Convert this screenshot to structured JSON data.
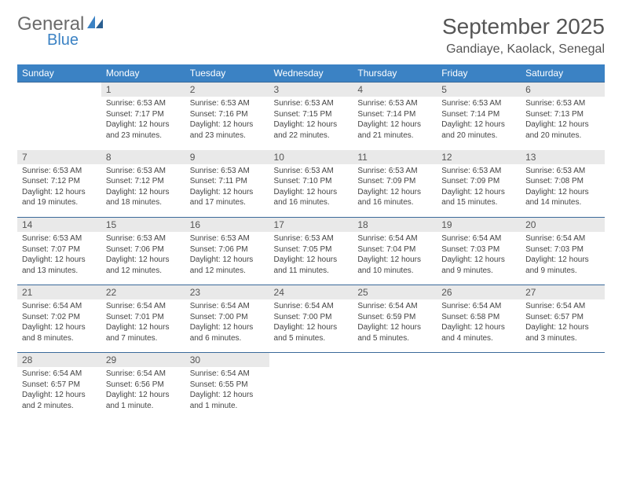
{
  "logo": {
    "line1": "General",
    "line2": "Blue"
  },
  "title": "September 2025",
  "location": "Gandiaye, Kaolack, Senegal",
  "colors": {
    "header_bg": "#3b82c4",
    "header_text": "#ffffff",
    "daynum_bg": "#e9e9e9",
    "row_border": "#3b6a9a",
    "logo_gray": "#6b6b6b",
    "logo_blue": "#3b82c4"
  },
  "weekdays": [
    "Sunday",
    "Monday",
    "Tuesday",
    "Wednesday",
    "Thursday",
    "Friday",
    "Saturday"
  ],
  "weeks": [
    [
      null,
      {
        "n": "1",
        "sr": "6:53 AM",
        "ss": "7:17 PM",
        "dl": "12 hours and 23 minutes."
      },
      {
        "n": "2",
        "sr": "6:53 AM",
        "ss": "7:16 PM",
        "dl": "12 hours and 23 minutes."
      },
      {
        "n": "3",
        "sr": "6:53 AM",
        "ss": "7:15 PM",
        "dl": "12 hours and 22 minutes."
      },
      {
        "n": "4",
        "sr": "6:53 AM",
        "ss": "7:14 PM",
        "dl": "12 hours and 21 minutes."
      },
      {
        "n": "5",
        "sr": "6:53 AM",
        "ss": "7:14 PM",
        "dl": "12 hours and 20 minutes."
      },
      {
        "n": "6",
        "sr": "6:53 AM",
        "ss": "7:13 PM",
        "dl": "12 hours and 20 minutes."
      }
    ],
    [
      {
        "n": "7",
        "sr": "6:53 AM",
        "ss": "7:12 PM",
        "dl": "12 hours and 19 minutes."
      },
      {
        "n": "8",
        "sr": "6:53 AM",
        "ss": "7:12 PM",
        "dl": "12 hours and 18 minutes."
      },
      {
        "n": "9",
        "sr": "6:53 AM",
        "ss": "7:11 PM",
        "dl": "12 hours and 17 minutes."
      },
      {
        "n": "10",
        "sr": "6:53 AM",
        "ss": "7:10 PM",
        "dl": "12 hours and 16 minutes."
      },
      {
        "n": "11",
        "sr": "6:53 AM",
        "ss": "7:09 PM",
        "dl": "12 hours and 16 minutes."
      },
      {
        "n": "12",
        "sr": "6:53 AM",
        "ss": "7:09 PM",
        "dl": "12 hours and 15 minutes."
      },
      {
        "n": "13",
        "sr": "6:53 AM",
        "ss": "7:08 PM",
        "dl": "12 hours and 14 minutes."
      }
    ],
    [
      {
        "n": "14",
        "sr": "6:53 AM",
        "ss": "7:07 PM",
        "dl": "12 hours and 13 minutes."
      },
      {
        "n": "15",
        "sr": "6:53 AM",
        "ss": "7:06 PM",
        "dl": "12 hours and 12 minutes."
      },
      {
        "n": "16",
        "sr": "6:53 AM",
        "ss": "7:06 PM",
        "dl": "12 hours and 12 minutes."
      },
      {
        "n": "17",
        "sr": "6:53 AM",
        "ss": "7:05 PM",
        "dl": "12 hours and 11 minutes."
      },
      {
        "n": "18",
        "sr": "6:54 AM",
        "ss": "7:04 PM",
        "dl": "12 hours and 10 minutes."
      },
      {
        "n": "19",
        "sr": "6:54 AM",
        "ss": "7:03 PM",
        "dl": "12 hours and 9 minutes."
      },
      {
        "n": "20",
        "sr": "6:54 AM",
        "ss": "7:03 PM",
        "dl": "12 hours and 9 minutes."
      }
    ],
    [
      {
        "n": "21",
        "sr": "6:54 AM",
        "ss": "7:02 PM",
        "dl": "12 hours and 8 minutes."
      },
      {
        "n": "22",
        "sr": "6:54 AM",
        "ss": "7:01 PM",
        "dl": "12 hours and 7 minutes."
      },
      {
        "n": "23",
        "sr": "6:54 AM",
        "ss": "7:00 PM",
        "dl": "12 hours and 6 minutes."
      },
      {
        "n": "24",
        "sr": "6:54 AM",
        "ss": "7:00 PM",
        "dl": "12 hours and 5 minutes."
      },
      {
        "n": "25",
        "sr": "6:54 AM",
        "ss": "6:59 PM",
        "dl": "12 hours and 5 minutes."
      },
      {
        "n": "26",
        "sr": "6:54 AM",
        "ss": "6:58 PM",
        "dl": "12 hours and 4 minutes."
      },
      {
        "n": "27",
        "sr": "6:54 AM",
        "ss": "6:57 PM",
        "dl": "12 hours and 3 minutes."
      }
    ],
    [
      {
        "n": "28",
        "sr": "6:54 AM",
        "ss": "6:57 PM",
        "dl": "12 hours and 2 minutes."
      },
      {
        "n": "29",
        "sr": "6:54 AM",
        "ss": "6:56 PM",
        "dl": "12 hours and 1 minute."
      },
      {
        "n": "30",
        "sr": "6:54 AM",
        "ss": "6:55 PM",
        "dl": "12 hours and 1 minute."
      },
      null,
      null,
      null,
      null
    ]
  ],
  "labels": {
    "sunrise": "Sunrise:",
    "sunset": "Sunset:",
    "daylight": "Daylight:"
  }
}
